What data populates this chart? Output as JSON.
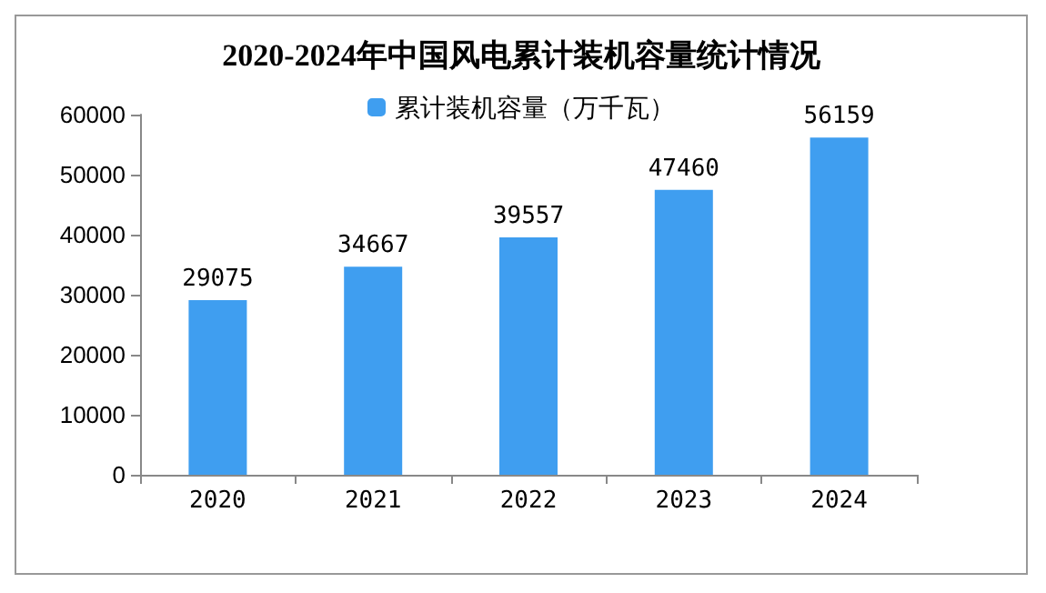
{
  "chart_data": {
    "type": "bar",
    "title": "2020-2024年中国风电累计装机容量统计情况",
    "categories": [
      "2020",
      "2021",
      "2022",
      "2023",
      "2024"
    ],
    "series": [
      {
        "name": "累计装机容量（万千瓦）",
        "color": "#3f9ef0",
        "values": [
          29075,
          34667,
          39557,
          47460,
          56159
        ]
      }
    ],
    "ylim": [
      0,
      60000
    ],
    "yticks": [
      0,
      10000,
      20000,
      30000,
      40000,
      50000,
      60000
    ],
    "grid": false,
    "legend": "top",
    "data_labels": true
  }
}
